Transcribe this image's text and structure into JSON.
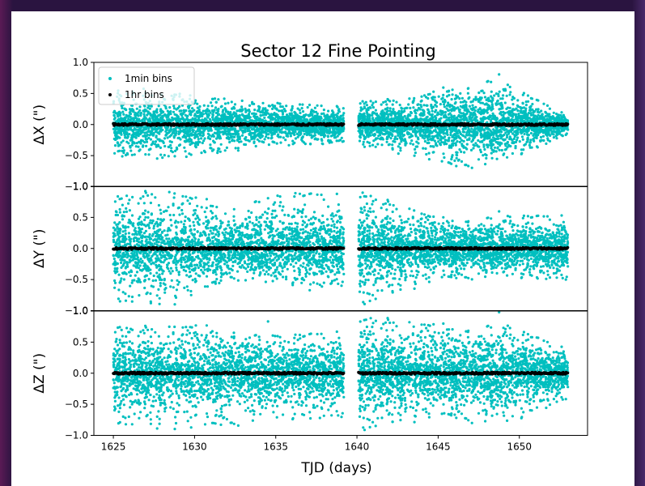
{
  "chart_data": {
    "type": "scatter",
    "title": "Sector 12 Fine Pointing",
    "xlabel": "TJD (days)",
    "xlim": [
      1623.8,
      1654.2
    ],
    "xticks": [
      1625,
      1630,
      1635,
      1640,
      1645,
      1650
    ],
    "x_tick_labels": [
      "1625",
      "1630",
      "1635",
      "1640",
      "1645",
      "1650"
    ],
    "segments": [
      [
        1625.0,
        1639.2
      ],
      [
        1640.1,
        1653.0
      ]
    ],
    "legend": {
      "placement": "upper-left",
      "entries": [
        {
          "label": "1min bins",
          "color": "#00bfbf"
        },
        {
          "label": "1hr bins",
          "color": "#000000"
        }
      ]
    },
    "series_colors": {
      "1min bins": "#00bfbf",
      "1hr bins": "#000000"
    },
    "panels": [
      {
        "ylabel": "ΔX (\")",
        "ylim": [
          -1.0,
          1.0
        ],
        "yticks": [
          -1.0,
          -0.5,
          0.0,
          0.5,
          1.0
        ],
        "y_tick_labels": [
          "−1.0",
          "−0.5",
          "0.0",
          "0.5",
          "1.0"
        ],
        "scatter_1min_envelope": [
          {
            "x": 1625.0,
            "y": [
              -0.55,
              0.55
            ]
          },
          {
            "x": 1630.0,
            "y": [
              -0.5,
              0.5
            ]
          },
          {
            "x": 1635.0,
            "y": [
              -0.35,
              0.35
            ]
          },
          {
            "x": 1639.2,
            "y": [
              -0.3,
              0.3
            ]
          },
          {
            "x": 1640.1,
            "y": [
              -0.35,
              0.4
            ]
          },
          {
            "x": 1643.5,
            "y": [
              -0.5,
              0.45
            ]
          },
          {
            "x": 1646.0,
            "y": [
              -0.7,
              0.65
            ]
          },
          {
            "x": 1648.5,
            "y": [
              -0.7,
              0.75
            ]
          },
          {
            "x": 1653.0,
            "y": [
              -0.15,
              0.15
            ]
          }
        ],
        "series_1hr": {
          "name": "1hr bins",
          "x": [
            1625,
            1628,
            1631,
            1634,
            1637,
            1639,
            1641,
            1644,
            1647,
            1650,
            1653
          ],
          "y": [
            0.0,
            0.02,
            0.01,
            0.0,
            0.0,
            0.0,
            0.0,
            0.0,
            0.0,
            0.0,
            0.0
          ]
        }
      },
      {
        "ylabel": "ΔY (\")",
        "ylim": [
          -1.0,
          1.0
        ],
        "yticks": [
          -1.0,
          -0.5,
          0.0,
          0.5,
          1.0
        ],
        "y_tick_labels": [
          "−1.0",
          "−0.5",
          "0.0",
          "0.5",
          "1.0"
        ],
        "scatter_1min_envelope": [
          {
            "x": 1625.0,
            "y": [
              -0.9,
              0.9
            ]
          },
          {
            "x": 1628.0,
            "y": [
              -1.0,
              1.0
            ]
          },
          {
            "x": 1632.0,
            "y": [
              -0.5,
              0.7
            ]
          },
          {
            "x": 1636.0,
            "y": [
              -0.6,
              0.9
            ]
          },
          {
            "x": 1639.2,
            "y": [
              -0.6,
              0.9
            ]
          },
          {
            "x": 1640.1,
            "y": [
              -1.0,
              1.0
            ]
          },
          {
            "x": 1645.0,
            "y": [
              -0.5,
              0.5
            ]
          },
          {
            "x": 1653.0,
            "y": [
              -0.5,
              0.55
            ]
          }
        ],
        "series_1hr": {
          "name": "1hr bins",
          "x": [
            1625,
            1628,
            1631,
            1634,
            1637,
            1639,
            1641,
            1644,
            1647,
            1650,
            1653
          ],
          "y": [
            0.02,
            0.0,
            0.0,
            0.0,
            0.0,
            0.0,
            0.0,
            0.0,
            0.0,
            0.0,
            0.0
          ]
        }
      },
      {
        "ylabel": "ΔZ (\")",
        "ylim": [
          -1.0,
          1.0
        ],
        "yticks": [
          -1.0,
          -0.5,
          0.0,
          0.5,
          1.0
        ],
        "y_tick_labels": [
          "−1.0",
          "−0.5",
          "0.0",
          "0.5",
          "1.0"
        ],
        "scatter_1min_envelope": [
          {
            "x": 1625.0,
            "y": [
              -0.9,
              0.8
            ]
          },
          {
            "x": 1630.0,
            "y": [
              -0.9,
              0.8
            ]
          },
          {
            "x": 1635.0,
            "y": [
              -0.8,
              0.6
            ]
          },
          {
            "x": 1639.2,
            "y": [
              -0.7,
              0.7
            ]
          },
          {
            "x": 1640.1,
            "y": [
              -1.0,
              1.0
            ]
          },
          {
            "x": 1645.0,
            "y": [
              -0.7,
              0.8
            ]
          },
          {
            "x": 1649.0,
            "y": [
              -0.9,
              0.8
            ]
          },
          {
            "x": 1653.0,
            "y": [
              -0.4,
              0.4
            ]
          }
        ],
        "series_1hr": {
          "name": "1hr bins",
          "x": [
            1625,
            1628,
            1631,
            1634,
            1637,
            1639,
            1641,
            1644,
            1647,
            1650,
            1653
          ],
          "y": [
            0.0,
            0.0,
            0.0,
            0.0,
            0.0,
            0.01,
            0.0,
            0.0,
            0.0,
            0.0,
            0.0
          ]
        }
      }
    ]
  }
}
